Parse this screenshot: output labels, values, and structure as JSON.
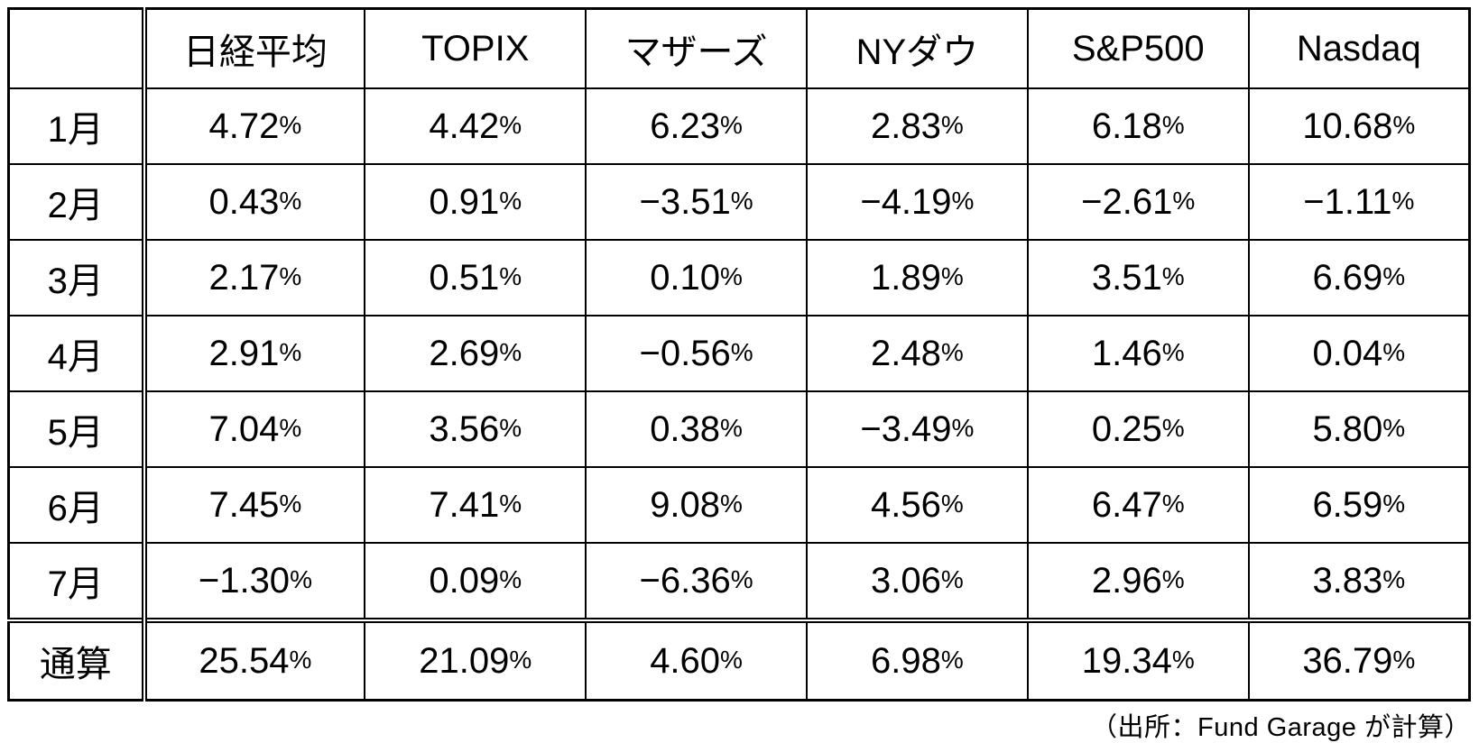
{
  "chart_data": {
    "type": "table",
    "columns": [
      "",
      "日経平均",
      "TOPIX",
      "マザーズ",
      "NYダウ",
      "S&P500",
      "Nasdaq"
    ],
    "rows": [
      {
        "label": "1月",
        "values": [
          "4.72%",
          "4.42%",
          "6.23%",
          "2.83%",
          "6.18%",
          "10.68%"
        ]
      },
      {
        "label": "2月",
        "values": [
          "0.43%",
          "0.91%",
          "−3.51%",
          "−4.19%",
          "−2.61%",
          "−1.11%"
        ]
      },
      {
        "label": "3月",
        "values": [
          "2.17%",
          "0.51%",
          "0.10%",
          "1.89%",
          "3.51%",
          "6.69%"
        ]
      },
      {
        "label": "4月",
        "values": [
          "2.91%",
          "2.69%",
          "−0.56%",
          "2.48%",
          "1.46%",
          "0.04%"
        ]
      },
      {
        "label": "5月",
        "values": [
          "7.04%",
          "3.56%",
          "0.38%",
          "−3.49%",
          "0.25%",
          "5.80%"
        ]
      },
      {
        "label": "6月",
        "values": [
          "7.45%",
          "7.41%",
          "9.08%",
          "4.56%",
          "6.47%",
          "6.59%"
        ]
      },
      {
        "label": "7月",
        "values": [
          "−1.30%",
          "0.09%",
          "−6.36%",
          "3.06%",
          "2.96%",
          "3.83%"
        ]
      },
      {
        "label": "通算",
        "values": [
          "25.54%",
          "21.09%",
          "4.60%",
          "6.98%",
          "19.34%",
          "36.79%"
        ],
        "is_total": true
      }
    ],
    "text_color": "#000000",
    "border_color": "#000000",
    "background_color": "#ffffff",
    "source_note": "（出所：Fund Garage が計算）"
  }
}
